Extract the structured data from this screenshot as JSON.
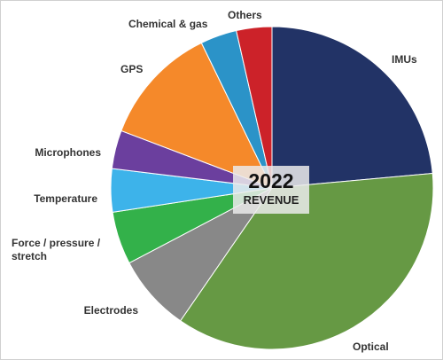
{
  "chart_data": {
    "type": "pie",
    "title": "",
    "center_label": {
      "year": "2022",
      "text": "REVENUE"
    },
    "start_angle_deg": 0,
    "direction": "clockwise",
    "slices": [
      {
        "label": "IMUs",
        "value": 24.5,
        "color": "#223366"
      },
      {
        "label": "Optical",
        "value": 37.5,
        "color": "#669944"
      },
      {
        "label": "Electrodes",
        "value": 8.0,
        "color": "#888888"
      },
      {
        "label": "Force / pressure / stretch",
        "value": 5.5,
        "color": "#33b14a"
      },
      {
        "label": "Temperature",
        "value": 4.5,
        "color": "#3db3ea"
      },
      {
        "label": "Microphones",
        "value": 4.0,
        "color": "#6b3f9e"
      },
      {
        "label": "GPS",
        "value": 12.5,
        "color": "#f5892a"
      },
      {
        "label": "Chemical & gas",
        "value": 3.8,
        "color": "#2b93c8"
      },
      {
        "label": "Others",
        "value": 3.7,
        "color": "#cc2229"
      }
    ]
  }
}
